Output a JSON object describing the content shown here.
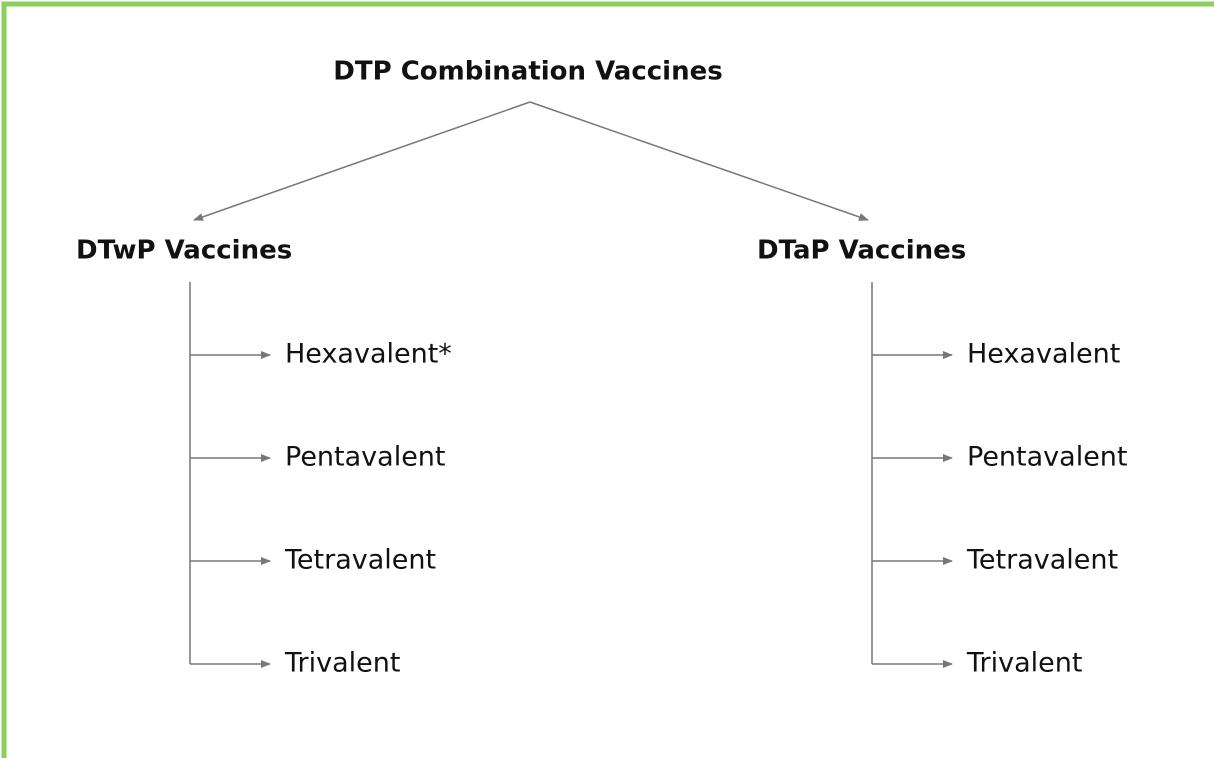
{
  "root": {
    "label": "DTP Combination Vaccines"
  },
  "branches": [
    {
      "label": "DTwP Vaccines",
      "children": [
        "Hexavalent*",
        "Pentavalent",
        "Tetravalent",
        "Trivalent"
      ]
    },
    {
      "label": "DTaP Vaccines",
      "children": [
        "Hexavalent",
        "Pentavalent",
        "Tetravalent",
        "Trivalent"
      ]
    }
  ]
}
